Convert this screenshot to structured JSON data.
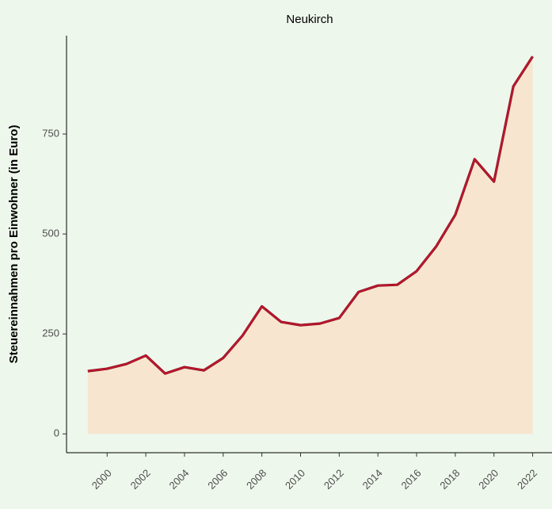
{
  "chart_data": {
    "type": "area",
    "title": "Neukirch",
    "ylabel": "Steuereinnahmen pro Einwohner (in Euro)",
    "x": [
      1999,
      2000,
      2001,
      2002,
      2003,
      2004,
      2005,
      2006,
      2007,
      2008,
      2009,
      2010,
      2011,
      2012,
      2013,
      2014,
      2015,
      2016,
      2017,
      2018,
      2019,
      2020,
      2021,
      2022
    ],
    "series": [
      {
        "name": "Neukirch",
        "color": "#c0172f",
        "fill": "#f7e5cf",
        "values": [
          157,
          163,
          175,
          196,
          151,
          167,
          159,
          190,
          246,
          319,
          280,
          272,
          276,
          290,
          355,
          371,
          373,
          407,
          468,
          548,
          687,
          631,
          869,
          944
        ]
      }
    ],
    "xlim": [
      1997.9,
      2023
    ],
    "xticks": [
      2000,
      2002,
      2004,
      2006,
      2008,
      2010,
      2012,
      2014,
      2016,
      2018,
      2020,
      2022
    ],
    "ylim": [
      -47,
      996
    ],
    "yticks": [
      0,
      250,
      500,
      750
    ]
  }
}
